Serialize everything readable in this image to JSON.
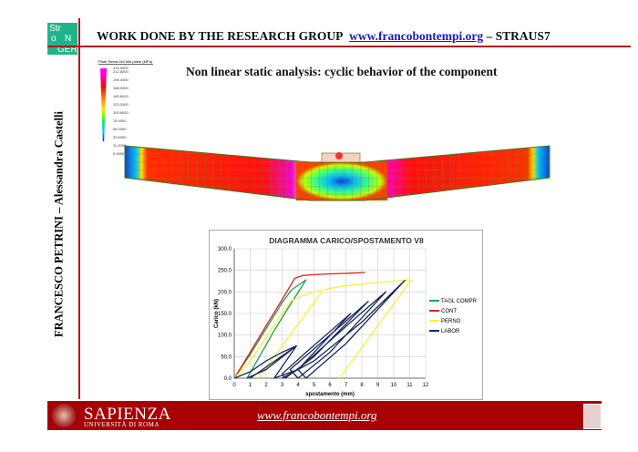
{
  "logo": {
    "line1": "Str",
    "line2": "o",
    "line3": "N",
    "line4": "GER"
  },
  "header": {
    "text": "WORK DONE BY THE RESEARCH GROUP",
    "link": "www.francobontempi.org",
    "suffix": "– STRAUS7"
  },
  "subtitle": "Non linear static analysis: cyclic behavior of the component",
  "side_text": "FRANCESCO PETRINI – Alessandra Castelli",
  "contour_legend": {
    "title": "Plate Stress:VM Mid plane (MPa)",
    "values": [
      "224.0000",
      "212.8000",
      "190.4000",
      "168.0000",
      "145.6000",
      "123.2000",
      "100.8000",
      "78.4000",
      "56.0000",
      "33.6000",
      "11.2000",
      "0.0000"
    ]
  },
  "footer": {
    "university": "SAPIENZA",
    "university_sub": "UNIVERSITÀ DI ROMA",
    "url": "www.francobontempi.org",
    "accent": "#a80000"
  },
  "chart_data": {
    "type": "line",
    "title": "DIAGRAMMA CARICO/SPOSTAMENTO V8",
    "xlabel": "spostamento (mm)",
    "ylabel": "Carico (kN)",
    "xlim": [
      0,
      12
    ],
    "ylim": [
      0,
      300
    ],
    "xticks": [
      "0",
      "1",
      "2",
      "3",
      "4",
      "5",
      "6",
      "7",
      "8",
      "9",
      "10",
      "11",
      "12"
    ],
    "yticks": [
      "0.0",
      "50.0",
      "100.0",
      "150.0",
      "200.0",
      "250.0",
      "300.0"
    ],
    "grid": true,
    "legend": "right",
    "series": [
      {
        "name": "TAGL COMPR",
        "color": "#22a050",
        "x": [
          0,
          1,
          2,
          3,
          3.6,
          4.5,
          3.5,
          2.5,
          1.5,
          0.8
        ],
        "y": [
          0,
          55,
          115,
          175,
          205,
          228,
          170,
          110,
          45,
          0
        ]
      },
      {
        "name": "CONT",
        "color": "#e02020",
        "x": [
          0,
          1,
          2,
          3,
          3.8,
          4.3,
          5,
          6,
          7,
          8.2
        ],
        "y": [
          0,
          60,
          122,
          182,
          232,
          238,
          240,
          242,
          243,
          245
        ]
      },
      {
        "name": "PERNO",
        "color": "#ffee33",
        "x": [
          0,
          1,
          2,
          3,
          3.6,
          4.2,
          5,
          6,
          7,
          8,
          9,
          10,
          11.1,
          6.6,
          null,
          5.5,
          1.5
        ],
        "y": [
          0,
          40,
          95,
          150,
          180,
          190,
          200,
          208,
          214,
          218,
          222,
          225,
          228,
          0,
          null,
          200,
          0
        ]
      },
      {
        "name": "LABOR",
        "color": "#1a2a5a",
        "x": [
          0,
          1,
          2,
          3,
          3.9,
          2,
          0.8,
          null,
          1,
          3.9,
          2.5,
          4,
          7.3,
          4.5,
          3,
          3.2,
          5,
          8.4,
          6,
          3.5,
          4,
          6,
          9.5,
          7,
          4,
          4.5,
          7,
          10.7,
          8,
          5,
          3
        ],
        "y": [
          0,
          15,
          40,
          60,
          75,
          20,
          0,
          null,
          0,
          75,
          0,
          20,
          150,
          60,
          10,
          0,
          50,
          178,
          100,
          20,
          0,
          60,
          200,
          120,
          20,
          0,
          80,
          227,
          130,
          40,
          0
        ]
      }
    ]
  }
}
